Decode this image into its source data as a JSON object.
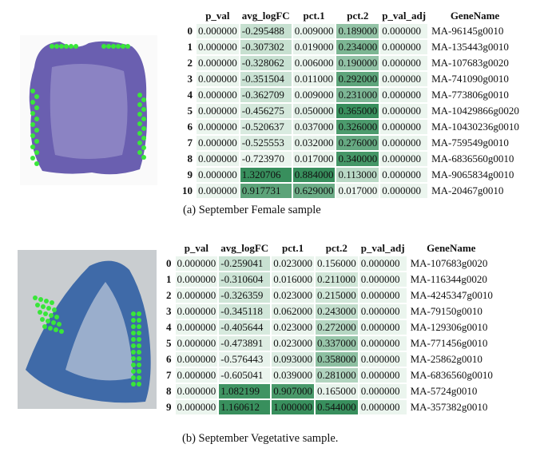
{
  "columns": [
    "p_val",
    "avg_logFC",
    "pct.1",
    "pct.2",
    "p_val_adj",
    "GeneName"
  ],
  "colors": {
    "light": "#ebf5ee",
    "dark": "#2f8a55",
    "tissue_a": "#6a5fb0",
    "tissue_b": "#3f6aa8",
    "spot": "#39e639"
  },
  "tables": [
    {
      "caption": "(a) September Female sample",
      "rows": [
        {
          "index": "0",
          "p_val": "0.000000",
          "avg_logFC": "-0.295488",
          "pct_1": "0.009000",
          "pct_2": "0.189000",
          "p_val_adj": "0.000000",
          "gene": "MA-96145g0010"
        },
        {
          "index": "1",
          "p_val": "0.000000",
          "avg_logFC": "-0.307302",
          "pct_1": "0.019000",
          "pct_2": "0.234000",
          "p_val_adj": "0.000000",
          "gene": "MA-135443g0010"
        },
        {
          "index": "2",
          "p_val": "0.000000",
          "avg_logFC": "-0.328062",
          "pct_1": "0.006000",
          "pct_2": "0.190000",
          "p_val_adj": "0.000000",
          "gene": "MA-107683g0020"
        },
        {
          "index": "3",
          "p_val": "0.000000",
          "avg_logFC": "-0.351504",
          "pct_1": "0.011000",
          "pct_2": "0.292000",
          "p_val_adj": "0.000000",
          "gene": "MA-741090g0010"
        },
        {
          "index": "4",
          "p_val": "0.000000",
          "avg_logFC": "-0.362709",
          "pct_1": "0.009000",
          "pct_2": "0.231000",
          "p_val_adj": "0.000000",
          "gene": "MA-773806g0010"
        },
        {
          "index": "5",
          "p_val": "0.000000",
          "avg_logFC": "-0.456275",
          "pct_1": "0.050000",
          "pct_2": "0.365000",
          "p_val_adj": "0.000000",
          "gene": "MA-10429866g0020"
        },
        {
          "index": "6",
          "p_val": "0.000000",
          "avg_logFC": "-0.520637",
          "pct_1": "0.037000",
          "pct_2": "0.326000",
          "p_val_adj": "0.000000",
          "gene": "MA-10430236g0010"
        },
        {
          "index": "7",
          "p_val": "0.000000",
          "avg_logFC": "-0.525553",
          "pct_1": "0.032000",
          "pct_2": "0.276000",
          "p_val_adj": "0.000000",
          "gene": "MA-759549g0010"
        },
        {
          "index": "8",
          "p_val": "0.000000",
          "avg_logFC": "-0.723970",
          "pct_1": "0.017000",
          "pct_2": "0.340000",
          "p_val_adj": "0.000000",
          "gene": "MA-6836560g0010"
        },
        {
          "index": "9",
          "p_val": "0.000000",
          "avg_logFC": "1.320706",
          "pct_1": "0.884000",
          "pct_2": "0.113000",
          "p_val_adj": "0.000000",
          "gene": "MA-9065834g0010"
        },
        {
          "index": "10",
          "p_val": "0.000000",
          "avg_logFC": "0.917731",
          "pct_1": "0.629000",
          "pct_2": "0.017000",
          "p_val_adj": "0.000000",
          "gene": "MA-20467g0010"
        }
      ]
    },
    {
      "caption": "(b) September Vegetative sample.",
      "rows": [
        {
          "index": "0",
          "p_val": "0.000000",
          "avg_logFC": "-0.259041",
          "pct_1": "0.023000",
          "pct_2": "0.156000",
          "p_val_adj": "0.000000",
          "gene": "MA-107683g0020"
        },
        {
          "index": "1",
          "p_val": "0.000000",
          "avg_logFC": "-0.310604",
          "pct_1": "0.016000",
          "pct_2": "0.211000",
          "p_val_adj": "0.000000",
          "gene": "MA-116344g0020"
        },
        {
          "index": "2",
          "p_val": "0.000000",
          "avg_logFC": "-0.326359",
          "pct_1": "0.023000",
          "pct_2": "0.215000",
          "p_val_adj": "0.000000",
          "gene": "MA-4245347g0010"
        },
        {
          "index": "3",
          "p_val": "0.000000",
          "avg_logFC": "-0.345118",
          "pct_1": "0.062000",
          "pct_2": "0.243000",
          "p_val_adj": "0.000000",
          "gene": "MA-79150g0010"
        },
        {
          "index": "4",
          "p_val": "0.000000",
          "avg_logFC": "-0.405644",
          "pct_1": "0.023000",
          "pct_2": "0.272000",
          "p_val_adj": "0.000000",
          "gene": "MA-129306g0010"
        },
        {
          "index": "5",
          "p_val": "0.000000",
          "avg_logFC": "-0.473891",
          "pct_1": "0.023000",
          "pct_2": "0.337000",
          "p_val_adj": "0.000000",
          "gene": "MA-771456g0010"
        },
        {
          "index": "6",
          "p_val": "0.000000",
          "avg_logFC": "-0.576443",
          "pct_1": "0.093000",
          "pct_2": "0.358000",
          "p_val_adj": "0.000000",
          "gene": "MA-25862g0010"
        },
        {
          "index": "7",
          "p_val": "0.000000",
          "avg_logFC": "-0.605041",
          "pct_1": "0.039000",
          "pct_2": "0.281000",
          "p_val_adj": "0.000000",
          "gene": "MA-6836560g0010"
        },
        {
          "index": "8",
          "p_val": "0.000000",
          "avg_logFC": "1.082199",
          "pct_1": "0.907000",
          "pct_2": "0.165000",
          "p_val_adj": "0.000000",
          "gene": "MA-5724g0010"
        },
        {
          "index": "9",
          "p_val": "0.000000",
          "avg_logFC": "1.160612",
          "pct_1": "1.000000",
          "pct_2": "0.544000",
          "p_val_adj": "0.000000",
          "gene": "MA-357382g0010"
        }
      ]
    }
  ]
}
